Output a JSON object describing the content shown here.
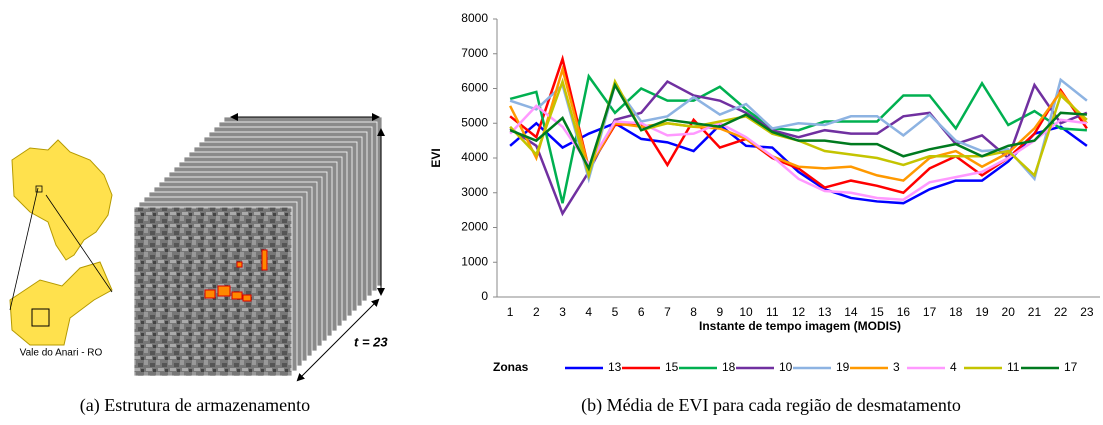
{
  "figure": {
    "map_label": "Vale do Anari - RO",
    "stack_label": "t = 23",
    "captions": [
      "(a) Estrutura de armazenamento",
      "(b) Média de EVI para cada região de desmatamento"
    ]
  },
  "chart_data": {
    "type": "line",
    "y_label": "EVI",
    "x_label": "Instante de tempo imagem (MODIS)",
    "legend_title": "Zonas",
    "legend": "bottom",
    "grid": false,
    "categories": [
      "1",
      "2",
      "3",
      "4",
      "5",
      "6",
      "7",
      "8",
      "9",
      "10",
      "11",
      "12",
      "13",
      "14",
      "15",
      "16",
      "17",
      "18",
      "19",
      "20",
      "21",
      "22",
      "23"
    ],
    "ylim": [
      0,
      8000
    ],
    "yticks": [
      0,
      1000,
      2000,
      3000,
      4000,
      5000,
      6000,
      7000,
      8000
    ],
    "series": [
      {
        "name": "13",
        "color": "#0000ff",
        "values": [
          4350,
          5000,
          4300,
          4700,
          5000,
          4550,
          4450,
          4200,
          4950,
          4350,
          4300,
          3600,
          3100,
          2850,
          2750,
          2700,
          3100,
          3350,
          3350,
          3900,
          4700,
          4900,
          4350
        ]
      },
      {
        "name": "15",
        "color": "#ff0000",
        "values": [
          5200,
          4600,
          6850,
          3700,
          4950,
          5000,
          3800,
          5100,
          4300,
          4550,
          4000,
          3700,
          3150,
          3350,
          3200,
          3000,
          3700,
          4050,
          3500,
          4000,
          4700,
          5950,
          4850
        ]
      },
      {
        "name": "18",
        "color": "#00b050",
        "values": [
          5700,
          5900,
          2700,
          6350,
          5300,
          6000,
          5650,
          5650,
          6050,
          5400,
          4850,
          4800,
          5050,
          5050,
          5050,
          5800,
          5800,
          4850,
          6150,
          4950,
          5350,
          4850,
          4800
        ]
      },
      {
        "name": "10",
        "color": "#7030a0",
        "values": [
          4850,
          4350,
          2400,
          3600,
          5100,
          5300,
          6200,
          5800,
          5650,
          5300,
          4800,
          4600,
          4800,
          4700,
          4700,
          5200,
          5300,
          4400,
          4650,
          4000,
          6100,
          5000,
          5300
        ]
      },
      {
        "name": "19",
        "color": "#8db3e2",
        "values": [
          5650,
          5400,
          6100,
          3400,
          6100,
          5050,
          5200,
          5750,
          5250,
          5550,
          4850,
          5000,
          4950,
          5200,
          5200,
          4650,
          5250,
          4500,
          4200,
          4250,
          3400,
          6250,
          5650
        ]
      },
      {
        "name": "3",
        "color": "#ff9900",
        "values": [
          5500,
          4000,
          6550,
          3700,
          5000,
          4900,
          5000,
          4900,
          4850,
          4550,
          4050,
          3750,
          3700,
          3750,
          3500,
          3350,
          4000,
          4200,
          3750,
          4150,
          4850,
          5900,
          5000
        ]
      },
      {
        "name": "4",
        "color": "#ff99ff",
        "values": [
          4700,
          5500,
          4900,
          3800,
          5050,
          5000,
          4650,
          4700,
          5000,
          4600,
          4050,
          3400,
          3050,
          3000,
          2850,
          2800,
          3300,
          3450,
          3600,
          4000,
          4500,
          5100,
          5000
        ]
      },
      {
        "name": "11",
        "color": "#c4c400",
        "values": [
          4900,
          4100,
          6200,
          3500,
          6200,
          4800,
          5000,
          4900,
          5050,
          5200,
          4700,
          4500,
          4200,
          4100,
          4000,
          3800,
          4050,
          4050,
          4050,
          4200,
          3500,
          5800,
          5100
        ]
      },
      {
        "name": "17",
        "color": "#007a1f",
        "values": [
          4800,
          4500,
          5150,
          3700,
          6100,
          4800,
          5100,
          5000,
          4900,
          5250,
          4750,
          4500,
          4500,
          4400,
          4400,
          4050,
          4250,
          4400,
          4050,
          4350,
          4500,
          5300,
          5250
        ]
      }
    ]
  }
}
